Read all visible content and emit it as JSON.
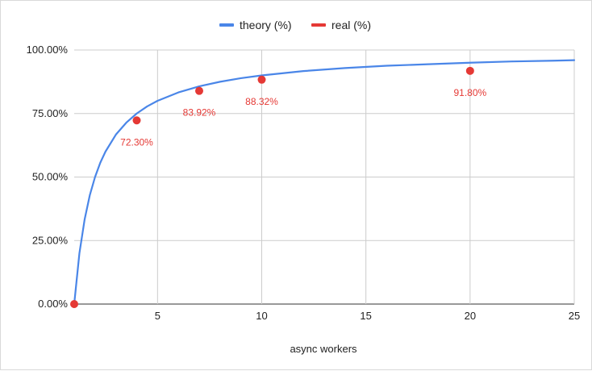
{
  "chart_data": {
    "type": "line",
    "title": "",
    "xlabel": "async workers",
    "ylabel": "",
    "xlim": [
      1,
      25
    ],
    "ylim": [
      0,
      100
    ],
    "x_ticks": [
      5,
      10,
      15,
      20,
      25
    ],
    "y_ticks": [
      0,
      25,
      50,
      75,
      100
    ],
    "y_tick_labels": [
      "0.00%",
      "25.00%",
      "50.00%",
      "75.00%",
      "100.00%"
    ],
    "grid": true,
    "legend_position": "top",
    "series": [
      {
        "name": "theory (%)",
        "kind": "line",
        "color": "#4a86e8",
        "x": [
          1,
          1.25,
          1.5,
          1.75,
          2,
          2.25,
          2.5,
          3,
          3.5,
          4,
          4.5,
          5,
          6,
          7,
          8,
          9,
          10,
          12,
          14,
          16,
          18,
          20,
          22,
          24,
          25
        ],
        "y": [
          0,
          20,
          33.3,
          42.9,
          50,
          55.6,
          60,
          66.7,
          71.4,
          75,
          77.8,
          80,
          83.3,
          85.7,
          87.5,
          88.9,
          90,
          91.7,
          92.9,
          93.8,
          94.4,
          95,
          95.5,
          95.8,
          96
        ]
      },
      {
        "name": "real (%)",
        "kind": "points",
        "color": "#e53935",
        "x": [
          1,
          4,
          7,
          10,
          20
        ],
        "y": [
          0,
          72.3,
          83.92,
          88.32,
          91.8
        ],
        "labels": [
          "",
          "72.30%",
          "83.92%",
          "88.32%",
          "91.80%"
        ]
      }
    ]
  }
}
